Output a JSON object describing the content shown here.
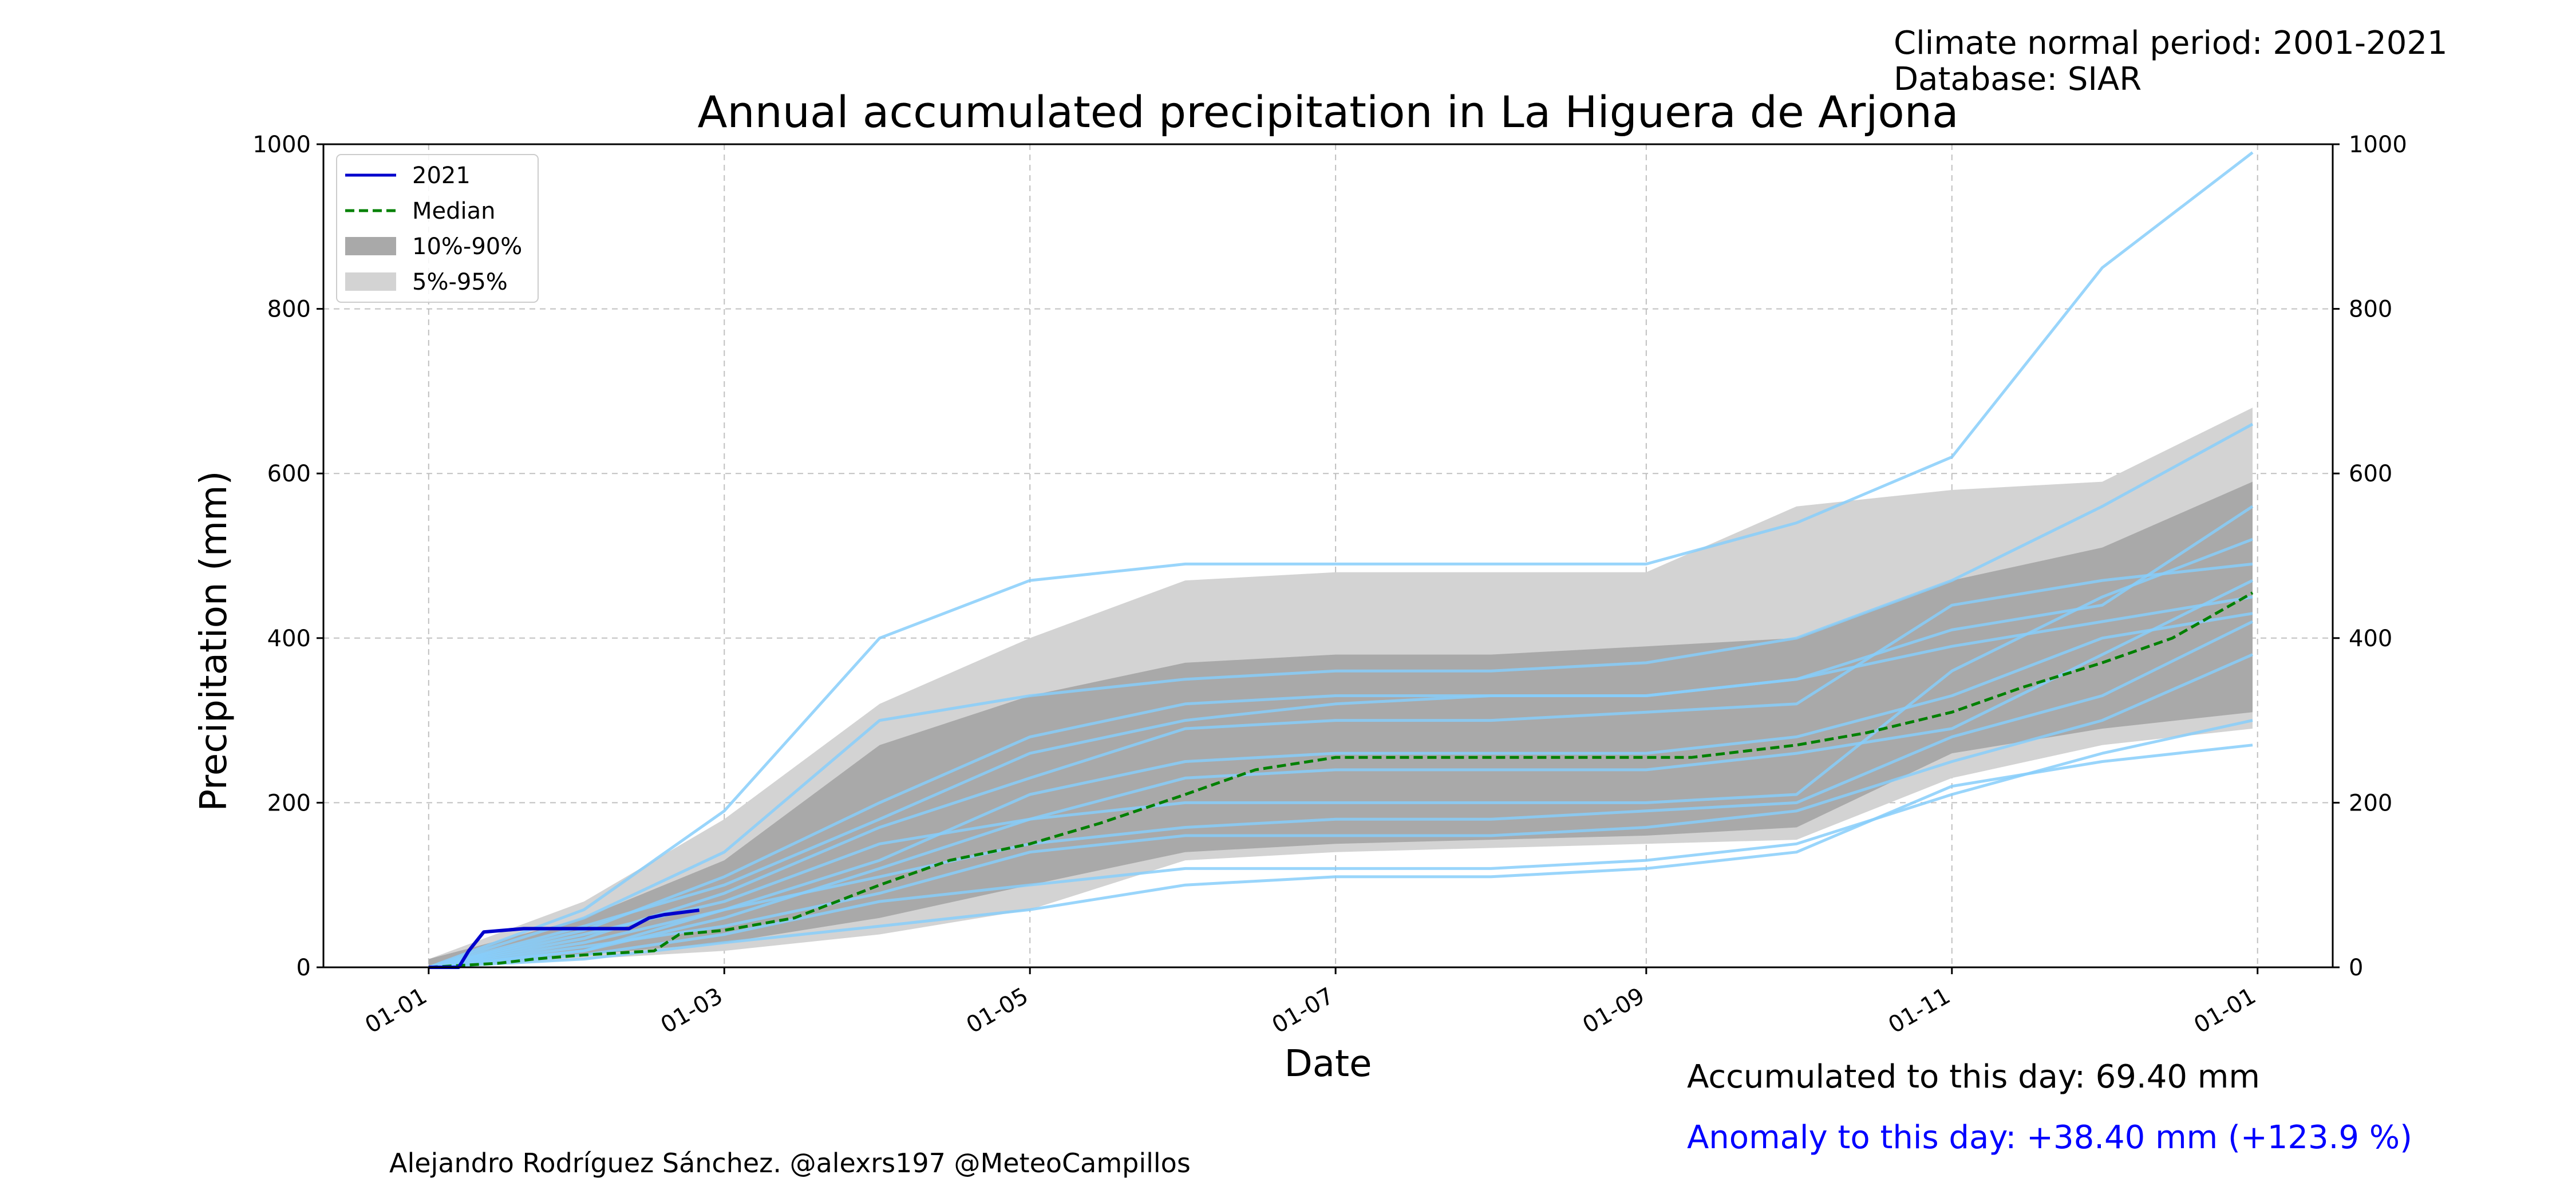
{
  "header": {
    "climate_normal_text": "Climate normal period: 2001-2021",
    "database_text": "Database: SIAR"
  },
  "footer": {
    "author": "Alejandro Rodríguez Sánchez. @alexrs197 @MeteoCampillos",
    "accumulated_text": "Accumulated to this day: 69.40 mm",
    "anomaly_text": "Anomaly to this day: +38.40 mm (+123.9 %)"
  },
  "colors": {
    "current_year": "#0000cc",
    "median": "#008000",
    "band_10_90": "#a9a9a9",
    "band_5_95": "#d3d3d3",
    "historical_years": "#87cefa",
    "anomaly_text": "#0000ff",
    "grid": "#b0b0b0"
  },
  "chart_data": {
    "type": "line",
    "title": "Annual accumulated precipitation in La Higuera de Arjona",
    "xlabel": "Date",
    "ylabel": "Precipitation (mm)",
    "xlim": [
      "2020-12-11",
      "2022-01-16"
    ],
    "ylim": [
      0,
      1000
    ],
    "yticks": [
      0,
      200,
      400,
      600,
      800,
      1000
    ],
    "xticks": [
      {
        "date": "2021-01-01",
        "label": "01-01"
      },
      {
        "date": "2021-03-01",
        "label": "01-03"
      },
      {
        "date": "2021-05-01",
        "label": "01-05"
      },
      {
        "date": "2021-07-01",
        "label": "01-07"
      },
      {
        "date": "2021-09-01",
        "label": "01-09"
      },
      {
        "date": "2021-11-01",
        "label": "01-11"
      },
      {
        "date": "2022-01-01",
        "label": "01-01"
      }
    ],
    "grid": true,
    "legend_position": "top-left",
    "legend": [
      "2021",
      "Median",
      "10%-90%",
      "5%-95%"
    ],
    "current_year": {
      "name": "2021",
      "x": [
        "2021-01-01",
        "2021-01-04",
        "2021-01-05",
        "2021-01-07",
        "2021-01-09",
        "2021-01-12",
        "2021-01-20",
        "2021-01-28",
        "2021-01-30",
        "2021-02-03",
        "2021-02-10",
        "2021-02-14",
        "2021-02-17",
        "2021-02-24"
      ],
      "y": [
        0,
        0,
        0,
        0,
        20,
        43,
        47,
        47,
        47,
        47,
        47,
        60,
        64,
        69.4
      ]
    },
    "median": {
      "name": "Median",
      "x": [
        "2021-01-01",
        "2021-01-15",
        "2021-01-22",
        "2021-02-01",
        "2021-02-15",
        "2021-02-20",
        "2021-03-01",
        "2021-03-15",
        "2021-04-01",
        "2021-04-15",
        "2021-05-01",
        "2021-05-15",
        "2021-06-01",
        "2021-06-15",
        "2021-07-01",
        "2021-08-01",
        "2021-09-01",
        "2021-09-10",
        "2021-10-01",
        "2021-10-15",
        "2021-11-01",
        "2021-11-15",
        "2021-12-01",
        "2021-12-15",
        "2021-12-31"
      ],
      "y": [
        0,
        5,
        10,
        15,
        20,
        40,
        45,
        60,
        100,
        130,
        150,
        175,
        210,
        240,
        255,
        255,
        255,
        255,
        270,
        285,
        310,
        340,
        370,
        400,
        455
      ]
    },
    "band_5_95": {
      "name": "5%-95%",
      "x": [
        "2021-01-01",
        "2021-02-01",
        "2021-03-01",
        "2021-04-01",
        "2021-05-01",
        "2021-06-01",
        "2021-07-01",
        "2021-08-01",
        "2021-09-01",
        "2021-10-01",
        "2021-11-01",
        "2021-12-01",
        "2021-12-31"
      ],
      "lower": [
        0,
        10,
        20,
        40,
        70,
        130,
        140,
        145,
        150,
        155,
        230,
        270,
        290
      ],
      "upper": [
        10,
        80,
        180,
        320,
        400,
        470,
        480,
        480,
        480,
        560,
        580,
        590,
        680
      ]
    },
    "band_10_90": {
      "name": "10%-90%",
      "x": [
        "2021-01-01",
        "2021-02-01",
        "2021-03-01",
        "2021-04-01",
        "2021-05-01",
        "2021-06-01",
        "2021-07-01",
        "2021-08-01",
        "2021-09-01",
        "2021-10-01",
        "2021-11-01",
        "2021-12-01",
        "2021-12-31"
      ],
      "lower": [
        0,
        15,
        30,
        60,
        100,
        140,
        150,
        155,
        160,
        170,
        260,
        290,
        310
      ],
      "upper": [
        10,
        60,
        130,
        270,
        330,
        370,
        380,
        380,
        390,
        400,
        470,
        510,
        590
      ]
    },
    "historical_years": {
      "x": [
        "2021-01-01",
        "2021-02-01",
        "2021-03-01",
        "2021-04-01",
        "2021-05-01",
        "2021-06-01",
        "2021-07-01",
        "2021-08-01",
        "2021-09-01",
        "2021-10-01",
        "2021-11-01",
        "2021-12-01",
        "2021-12-31"
      ],
      "series": [
        [
          0,
          70,
          190,
          400,
          470,
          490,
          490,
          490,
          490,
          540,
          620,
          850,
          990
        ],
        [
          0,
          60,
          140,
          300,
          330,
          350,
          360,
          360,
          370,
          400,
          470,
          560,
          660
        ],
        [
          0,
          40,
          80,
          150,
          180,
          200,
          200,
          200,
          200,
          210,
          360,
          450,
          520
        ],
        [
          0,
          20,
          60,
          120,
          180,
          230,
          240,
          240,
          240,
          260,
          290,
          380,
          470
        ],
        [
          0,
          30,
          70,
          110,
          150,
          170,
          180,
          180,
          190,
          200,
          280,
          330,
          420
        ],
        [
          0,
          25,
          50,
          90,
          140,
          160,
          160,
          160,
          170,
          190,
          250,
          300,
          380
        ],
        [
          0,
          15,
          40,
          80,
          100,
          120,
          120,
          120,
          130,
          150,
          210,
          260,
          300
        ],
        [
          0,
          10,
          30,
          50,
          70,
          100,
          110,
          110,
          120,
          140,
          220,
          250,
          270
        ],
        [
          0,
          50,
          100,
          180,
          260,
          300,
          320,
          330,
          330,
          350,
          410,
          440,
          560
        ],
        [
          0,
          35,
          90,
          170,
          230,
          290,
          300,
          300,
          310,
          320,
          440,
          470,
          490
        ],
        [
          0,
          20,
          70,
          130,
          210,
          250,
          260,
          260,
          260,
          280,
          330,
          400,
          430
        ],
        [
          0,
          45,
          110,
          200,
          280,
          320,
          330,
          330,
          330,
          350,
          390,
          420,
          450
        ]
      ]
    }
  }
}
